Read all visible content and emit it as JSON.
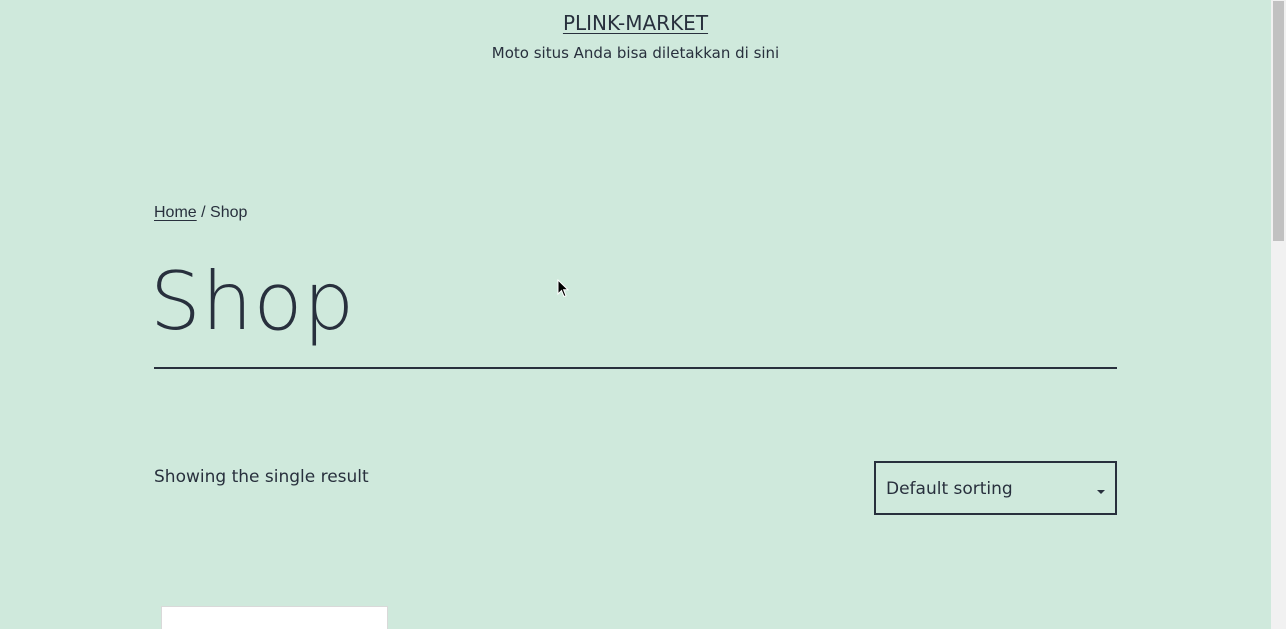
{
  "header": {
    "site_title": "PLINK-MARKET",
    "site_description": "Moto situs Anda bisa diletakkan di sini"
  },
  "breadcrumb": {
    "home_label": "Home",
    "separator": " / ",
    "current": "Shop"
  },
  "main": {
    "page_title": "Shop",
    "result_count": "Showing the single result",
    "sorting": {
      "selected": "Default sorting"
    }
  },
  "colors": {
    "background": "#cfe9dc",
    "text": "#28303d"
  },
  "icons": {
    "dropdown": "chevron-down-icon",
    "cursor": "mouse-pointer-icon"
  }
}
